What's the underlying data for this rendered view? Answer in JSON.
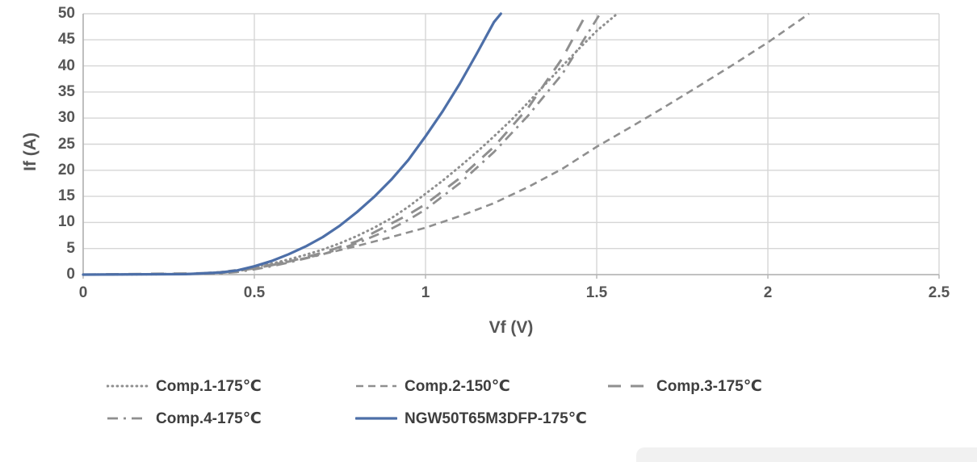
{
  "chart_data": {
    "type": "line",
    "title": "",
    "xlabel": "Vf (V)",
    "ylabel": "If (A)",
    "xlim": [
      0,
      2.5
    ],
    "ylim": [
      0,
      50
    ],
    "grid": true,
    "legend_position": "bottom",
    "x_ticks": {
      "values": [
        0,
        0.5,
        1,
        1.5,
        2,
        2.5
      ],
      "labels": [
        "0",
        "0.5",
        "1",
        "1.5",
        "2",
        "2.5"
      ]
    },
    "y_ticks": {
      "values": [
        0,
        5,
        10,
        15,
        20,
        25,
        30,
        35,
        40,
        45,
        50
      ],
      "labels": [
        "0",
        "5",
        "10",
        "15",
        "20",
        "25",
        "30",
        "35",
        "40",
        "45",
        "50"
      ]
    },
    "series": [
      {
        "name": "Comp.1-175℃",
        "line_style": "dotted",
        "color": "#8f8f8f",
        "points": [
          [
            0,
            0
          ],
          [
            0.3,
            0.1
          ],
          [
            0.4,
            0.4
          ],
          [
            0.45,
            0.8
          ],
          [
            0.5,
            1.5
          ],
          [
            0.55,
            2.1
          ],
          [
            0.6,
            2.9
          ],
          [
            0.65,
            3.8
          ],
          [
            0.7,
            4.8
          ],
          [
            0.75,
            6.0
          ],
          [
            0.8,
            7.4
          ],
          [
            0.85,
            9.0
          ],
          [
            0.9,
            10.8
          ],
          [
            0.95,
            13.0
          ],
          [
            1.0,
            15.5
          ],
          [
            1.05,
            18.0
          ],
          [
            1.1,
            20.7
          ],
          [
            1.15,
            23.5
          ],
          [
            1.2,
            26.5
          ],
          [
            1.25,
            29.6
          ],
          [
            1.3,
            33.0
          ],
          [
            1.35,
            36.5
          ],
          [
            1.4,
            40.0
          ],
          [
            1.45,
            43.4
          ],
          [
            1.5,
            46.7
          ],
          [
            1.56,
            50
          ]
        ]
      },
      {
        "name": "Comp.2-150℃",
        "line_style": "dashed",
        "color": "#8f8f8f",
        "points": [
          [
            0,
            0
          ],
          [
            0.3,
            0.1
          ],
          [
            0.4,
            0.5
          ],
          [
            0.45,
            0.9
          ],
          [
            0.5,
            1.4
          ],
          [
            0.6,
            2.5
          ],
          [
            0.7,
            3.9
          ],
          [
            0.8,
            5.5
          ],
          [
            0.9,
            7.2
          ],
          [
            1.0,
            9.0
          ],
          [
            1.1,
            11.2
          ],
          [
            1.2,
            13.7
          ],
          [
            1.3,
            16.8
          ],
          [
            1.4,
            20.3
          ],
          [
            1.5,
            24.5
          ],
          [
            1.6,
            28.3
          ],
          [
            1.7,
            32.2
          ],
          [
            1.8,
            36.2
          ],
          [
            1.9,
            40.3
          ],
          [
            2.0,
            44.5
          ],
          [
            2.12,
            50
          ]
        ]
      },
      {
        "name": "Comp.3-175℃",
        "line_style": "long-dash",
        "color": "#8f8f8f",
        "points": [
          [
            0,
            0
          ],
          [
            0.4,
            0.3
          ],
          [
            0.45,
            0.7
          ],
          [
            0.5,
            1.2
          ],
          [
            0.55,
            1.8
          ],
          [
            0.6,
            2.5
          ],
          [
            0.7,
            4.2
          ],
          [
            0.8,
            6.4
          ],
          [
            0.9,
            9.8
          ],
          [
            0.95,
            11.5
          ],
          [
            1.0,
            13.5
          ],
          [
            1.1,
            18.5
          ],
          [
            1.2,
            24.5
          ],
          [
            1.3,
            32.0
          ],
          [
            1.4,
            41.5
          ],
          [
            1.47,
            50
          ]
        ]
      },
      {
        "name": "Comp.4-175℃",
        "line_style": "dash-dot",
        "color": "#8f8f8f",
        "points": [
          [
            0,
            0
          ],
          [
            0.4,
            0.2
          ],
          [
            0.45,
            0.5
          ],
          [
            0.5,
            1.0
          ],
          [
            0.55,
            1.6
          ],
          [
            0.6,
            2.3
          ],
          [
            0.7,
            3.9
          ],
          [
            0.8,
            6.0
          ],
          [
            0.9,
            8.8
          ],
          [
            0.95,
            10.5
          ],
          [
            1.0,
            12.5
          ],
          [
            1.1,
            17.5
          ],
          [
            1.2,
            23.5
          ],
          [
            1.3,
            30.5
          ],
          [
            1.4,
            38.5
          ],
          [
            1.51,
            50
          ]
        ]
      },
      {
        "name": "NGW50T65M3DFP-175℃",
        "line_style": "solid",
        "color": "#4d6fa8",
        "points": [
          [
            0,
            0
          ],
          [
            0.3,
            0.1
          ],
          [
            0.4,
            0.4
          ],
          [
            0.45,
            0.8
          ],
          [
            0.5,
            1.6
          ],
          [
            0.55,
            2.6
          ],
          [
            0.6,
            3.9
          ],
          [
            0.65,
            5.4
          ],
          [
            0.7,
            7.2
          ],
          [
            0.75,
            9.4
          ],
          [
            0.8,
            12.0
          ],
          [
            0.85,
            14.9
          ],
          [
            0.9,
            18.2
          ],
          [
            0.95,
            22.0
          ],
          [
            1.0,
            26.5
          ],
          [
            1.05,
            31.3
          ],
          [
            1.1,
            36.6
          ],
          [
            1.15,
            42.4
          ],
          [
            1.2,
            48.4
          ],
          [
            1.22,
            50
          ]
        ]
      }
    ]
  },
  "colors": {
    "grid": "#d6d6d6",
    "axis": "#b3b3b3",
    "tick_text": "#565656",
    "legend_text": "#3e3e3e",
    "accent_blue": "#4d6fa8",
    "curve_gray": "#8f8f8f",
    "background": "#ffffff"
  }
}
